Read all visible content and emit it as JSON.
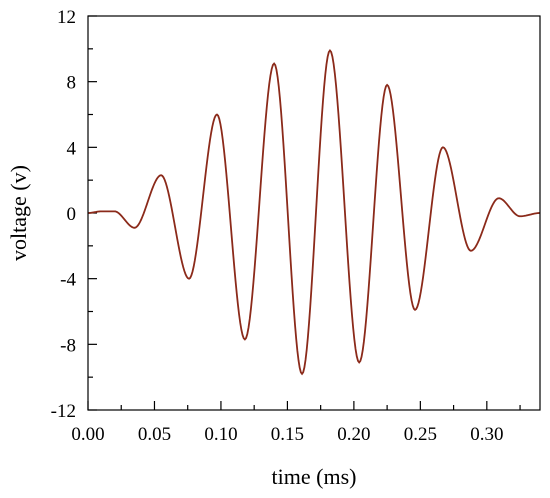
{
  "chart_data": {
    "type": "line",
    "title": "",
    "xlabel": "time (ms)",
    "ylabel": "voltage (v)",
    "xlim": [
      0,
      0.34
    ],
    "ylim": [
      -12,
      12
    ],
    "x_ticks": [
      0.0,
      0.05,
      0.1,
      0.15,
      0.2,
      0.25,
      0.3
    ],
    "x_tick_labels": [
      "0.00",
      "0.05",
      "0.10",
      "0.15",
      "0.20",
      "0.25",
      "0.30"
    ],
    "y_ticks": [
      -12,
      -8,
      -4,
      0,
      4,
      8,
      12
    ],
    "y_tick_labels": [
      "-12",
      "-8",
      "-4",
      "0",
      "4",
      "8",
      "12"
    ],
    "grid": false,
    "legend": "none",
    "series": [
      {
        "color": "#8b2a1a",
        "x": [
          0.0,
          0.01,
          0.02,
          0.035,
          0.055,
          0.076,
          0.097,
          0.118,
          0.14,
          0.161,
          0.182,
          0.204,
          0.225,
          0.246,
          0.267,
          0.288,
          0.309,
          0.325,
          0.34
        ],
        "y": [
          0.0,
          0.1,
          0.1,
          -0.9,
          2.3,
          -4.0,
          6.0,
          -7.7,
          9.1,
          -9.8,
          9.9,
          -9.1,
          7.8,
          -5.9,
          4.0,
          -2.3,
          0.9,
          -0.2,
          0.0
        ]
      }
    ]
  }
}
